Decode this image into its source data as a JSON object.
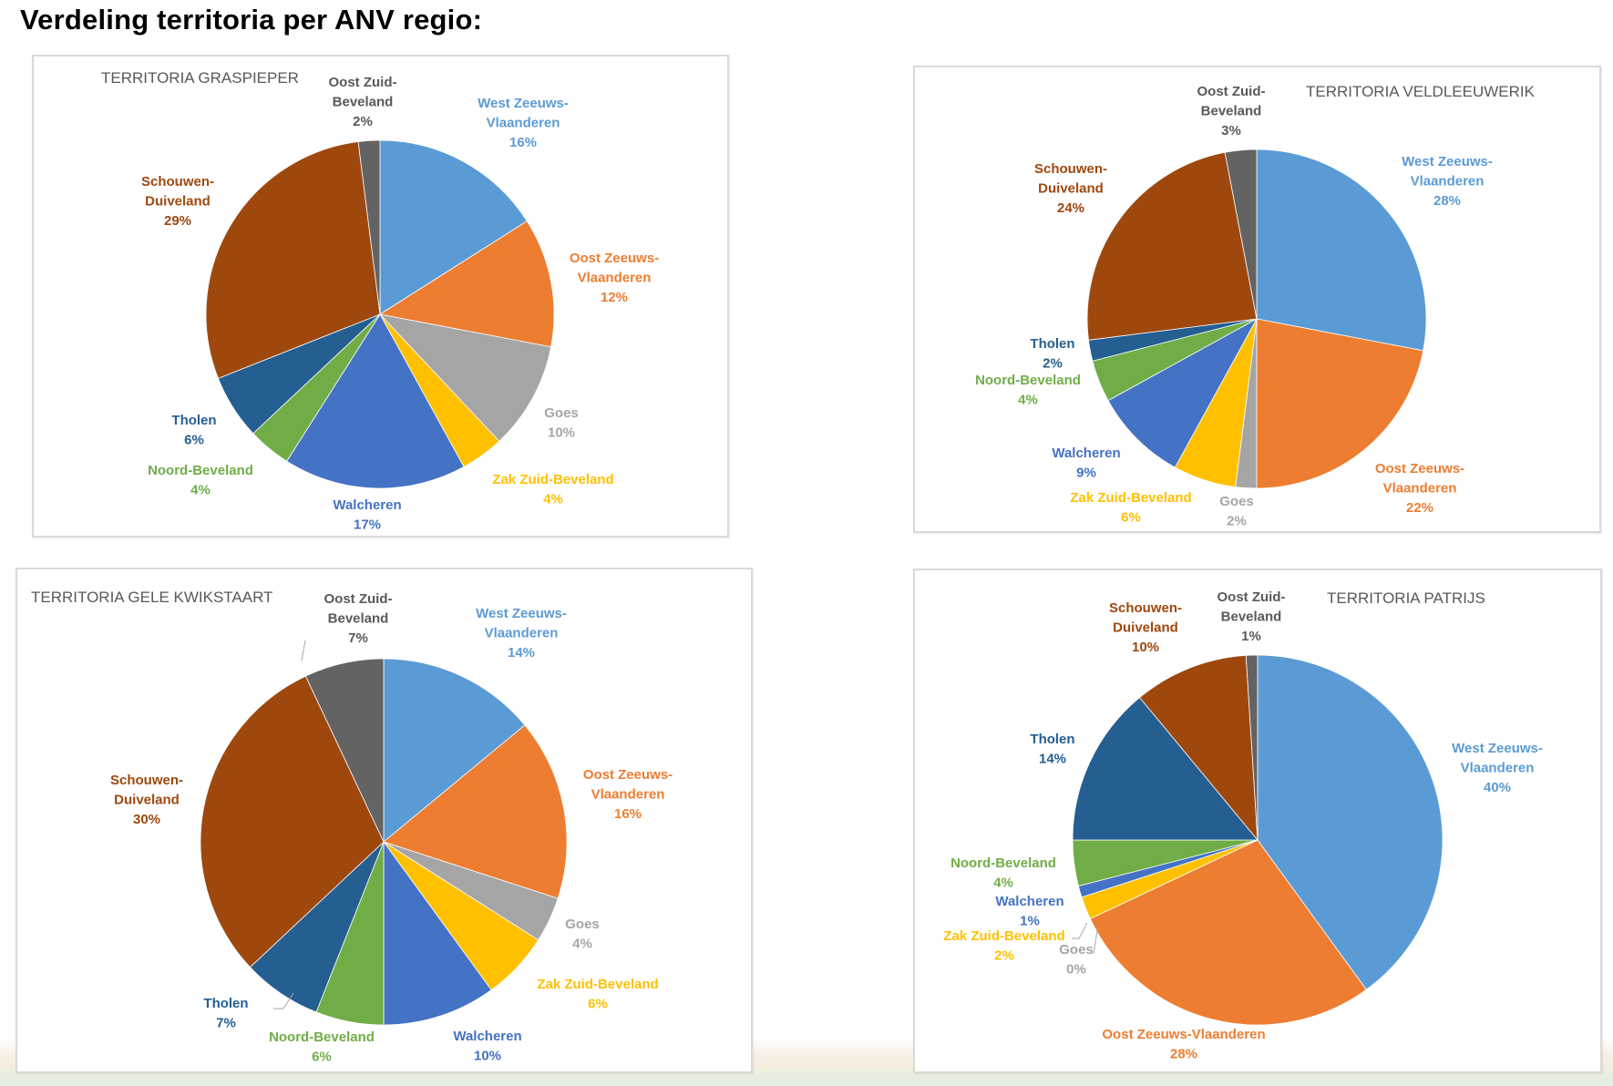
{
  "page_title": "Verdeling territoria per ANV regio:",
  "colors": {
    "West Zeeuws-Vlaanderen": "#5b9bd5",
    "Oost Zeeuws-Vlaanderen": "#ed7d31",
    "Goes": "#a5a5a5",
    "Zak Zuid-Beveland": "#ffc000",
    "Walcheren": "#4472c4",
    "Noord-Beveland": "#70ad47",
    "Tholen": "#255e91",
    "Schouwen-Duiveland": "#9e480e",
    "Oost Zuid-Beveland": "#636363"
  },
  "label_colors": {
    "West Zeeuws-Vlaanderen": "#5b9bd5",
    "Oost Zeeuws-Vlaanderen": "#ed7d31",
    "Goes": "#a5a5a5",
    "Zak Zuid-Beveland": "#ffc000",
    "Walcheren": "#4472c4",
    "Noord-Beveland": "#70ad47",
    "Tholen": "#255e91",
    "Schouwen-Duiveland": "#9e480e",
    "Oost Zuid-Beveland": "#595959"
  },
  "chart_data": [
    {
      "type": "pie",
      "title": "TERRITORIA GRASPIEPER",
      "categories": [
        "West Zeeuws-Vlaanderen",
        "Oost Zeeuws-Vlaanderen",
        "Goes",
        "Zak Zuid-Beveland",
        "Walcheren",
        "Noord-Beveland",
        "Tholen",
        "Schouwen-Duiveland",
        "Oost Zuid-Beveland"
      ],
      "values": [
        16,
        12,
        10,
        4,
        17,
        4,
        6,
        29,
        2
      ],
      "unit": "%",
      "labels": [
        {
          "lines": [
            "West Zeeuws-",
            "Vlaanderen",
            "16%"
          ]
        },
        {
          "lines": [
            "Oost Zeeuws-",
            "Vlaanderen",
            "12%"
          ]
        },
        {
          "lines": [
            "Goes",
            "10%"
          ]
        },
        {
          "lines": [
            "Zak Zuid-Beveland",
            "4%"
          ]
        },
        {
          "lines": [
            "Walcheren",
            "17%"
          ]
        },
        {
          "lines": [
            "Noord-Beveland",
            "4%"
          ]
        },
        {
          "lines": [
            "Tholen",
            "6%"
          ]
        },
        {
          "lines": [
            "Schouwen-",
            "Duiveland",
            "29%"
          ]
        },
        {
          "lines": [
            "Oost Zuid-",
            "Beveland",
            "2%"
          ]
        }
      ]
    },
    {
      "type": "pie",
      "title": "TERRITORIA VELDLEEUWERIK",
      "categories": [
        "West Zeeuws-Vlaanderen",
        "Oost Zeeuws-Vlaanderen",
        "Goes",
        "Zak Zuid-Beveland",
        "Walcheren",
        "Noord-Beveland",
        "Tholen",
        "Schouwen-Duiveland",
        "Oost Zuid-Beveland"
      ],
      "values": [
        28,
        22,
        2,
        6,
        9,
        4,
        2,
        24,
        3
      ],
      "unit": "%",
      "labels": [
        {
          "lines": [
            "West Zeeuws-",
            "Vlaanderen",
            "28%"
          ]
        },
        {
          "lines": [
            "Oost Zeeuws-",
            "Vlaanderen",
            "22%"
          ]
        },
        {
          "lines": [
            "Goes",
            "2%"
          ]
        },
        {
          "lines": [
            "Zak Zuid-Beveland",
            "6%"
          ]
        },
        {
          "lines": [
            "Walcheren",
            "9%"
          ]
        },
        {
          "lines": [
            "Noord-Beveland",
            "4%"
          ]
        },
        {
          "lines": [
            "Tholen",
            "2%"
          ]
        },
        {
          "lines": [
            "Schouwen-",
            "Duiveland",
            "24%"
          ]
        },
        {
          "lines": [
            "Oost Zuid-",
            "Beveland",
            "3%"
          ]
        }
      ]
    },
    {
      "type": "pie",
      "title": "TERRITORIA GELE KWIKSTAART",
      "categories": [
        "West Zeeuws-Vlaanderen",
        "Oost Zeeuws-Vlaanderen",
        "Goes",
        "Zak Zuid-Beveland",
        "Walcheren",
        "Noord-Beveland",
        "Tholen",
        "Schouwen-Duiveland",
        "Oost Zuid-Beveland"
      ],
      "values": [
        14,
        16,
        4,
        6,
        10,
        6,
        7,
        30,
        7
      ],
      "unit": "%",
      "labels": [
        {
          "lines": [
            "West Zeeuws-",
            "Vlaanderen",
            "14%"
          ]
        },
        {
          "lines": [
            "Oost Zeeuws-",
            "Vlaanderen",
            "16%"
          ]
        },
        {
          "lines": [
            "Goes",
            "4%"
          ]
        },
        {
          "lines": [
            "Zak Zuid-Beveland",
            "6%"
          ]
        },
        {
          "lines": [
            "Walcheren",
            "10%"
          ]
        },
        {
          "lines": [
            "Noord-Beveland",
            "6%"
          ]
        },
        {
          "lines": [
            "Tholen",
            "7%"
          ]
        },
        {
          "lines": [
            "Schouwen-",
            "Duiveland",
            "30%"
          ]
        },
        {
          "lines": [
            "Oost Zuid-",
            "Beveland",
            "7%"
          ]
        }
      ]
    },
    {
      "type": "pie",
      "title": "TERRITORIA PATRIJS",
      "categories": [
        "West Zeeuws-Vlaanderen",
        "Oost Zeeuws-Vlaanderen",
        "Goes",
        "Zak Zuid-Beveland",
        "Walcheren",
        "Noord-Beveland",
        "Tholen",
        "Schouwen-Duiveland",
        "Oost Zuid-Beveland"
      ],
      "values": [
        40,
        28,
        0,
        2,
        1,
        4,
        14,
        10,
        1
      ],
      "unit": "%",
      "labels": [
        {
          "lines": [
            "West Zeeuws-",
            "Vlaanderen",
            "40%"
          ]
        },
        {
          "lines": [
            "Oost Zeeuws-Vlaanderen",
            "28%"
          ]
        },
        {
          "lines": [
            "Goes",
            "0%"
          ]
        },
        {
          "lines": [
            "Zak Zuid-Beveland",
            "2%"
          ]
        },
        {
          "lines": [
            "Walcheren",
            "1%"
          ]
        },
        {
          "lines": [
            "Noord-Beveland",
            "4%"
          ]
        },
        {
          "lines": [
            "Tholen",
            "14%"
          ]
        },
        {
          "lines": [
            "Schouwen-",
            "Duiveland",
            "10%"
          ]
        },
        {
          "lines": [
            "Oost Zuid-",
            "Beveland",
            "1%"
          ]
        }
      ]
    }
  ]
}
